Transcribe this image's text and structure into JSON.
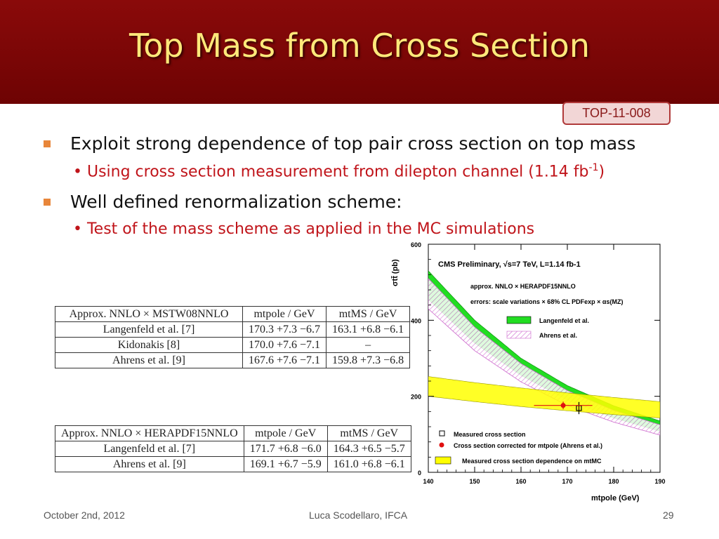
{
  "slide": {
    "title": "Top Mass from Cross Section",
    "badge": "TOP-11-008",
    "bullets": [
      {
        "text": "Exploit strong dependence of top pair cross section on top mass",
        "sub": "• Using cross section measurement from dilepton channel (1.14 fb",
        "sub_sup": "-1",
        "sub_end": ")"
      },
      {
        "text": "Well defined renormalization scheme:",
        "sub": "• Test of the mass scheme as applied in the MC simulations"
      }
    ]
  },
  "tables": [
    {
      "header": [
        "Approx. NNLO × MSTW08NNLO",
        "mtpole / GeV",
        "mtMS / GeV"
      ],
      "rows": [
        [
          "Langenfeld et al. [7]",
          "170.3 +7.3 −6.7",
          "163.1 +6.8 −6.1"
        ],
        [
          "Kidonakis [8]",
          "170.0 +7.6 −7.1",
          "–"
        ],
        [
          "Ahrens et al. [9]",
          "167.6 +7.6 −7.1",
          "159.8 +7.3 −6.8"
        ]
      ]
    },
    {
      "header": [
        "Approx. NNLO × HERAPDF15NNLO",
        "mtpole / GeV",
        "mtMS / GeV"
      ],
      "rows": [
        [
          "Langenfeld et al. [7]",
          "171.7 +6.8 −6.0",
          "164.3 +6.5 −5.7"
        ],
        [
          "Ahrens et al. [9]",
          "169.1 +6.7 −5.9",
          "161.0 +6.8 −6.1"
        ]
      ]
    }
  ],
  "chart_data": {
    "type": "line",
    "title": "CMS Preliminary, √s=7 TeV, L=1.14 fb-1",
    "info_lines": [
      "approx. NNLO × HERAPDF15NNLO",
      "errors: scale variations × 68% CL PDFexp × αs(MZ)"
    ],
    "xlabel": "mtpole (GeV)",
    "ylabel": "σtt̄ (pb)",
    "xlim": [
      140,
      190
    ],
    "ylim": [
      0,
      600
    ],
    "x_ticks": [
      140,
      150,
      160,
      170,
      180,
      190
    ],
    "y_ticks": [
      0,
      200,
      400,
      600
    ],
    "series": [
      {
        "name": "Langenfeld et al.",
        "style": "band",
        "color": "#22dd22",
        "x": [
          140,
          150,
          160,
          170,
          180,
          190
        ],
        "upper": [
          530,
          400,
          300,
          228,
          175,
          135
        ],
        "lower": [
          455,
          340,
          255,
          190,
          143,
          108
        ]
      },
      {
        "name": "Ahrens et al.",
        "style": "hatched-band",
        "color": "#cc66cc",
        "x": [
          140,
          150,
          160,
          170,
          180,
          190
        ],
        "upper": [
          510,
          382,
          286,
          215,
          163,
          125
        ],
        "lower": [
          430,
          320,
          238,
          176,
          132,
          98
        ]
      },
      {
        "name": "Measured cross section dependence on mtMC",
        "style": "band",
        "color": "#ffff00",
        "x": [
          140,
          150,
          160,
          170,
          180,
          190
        ],
        "upper": [
          252,
          236,
          222,
          209,
          197,
          186
        ],
        "lower": [
          200,
          186,
          173,
          162,
          152,
          143
        ]
      }
    ],
    "points": [
      {
        "name": "Measured cross section",
        "marker": "open-square",
        "x": 172.5,
        "y": 169,
        "xerr": 0,
        "yerr": 16
      },
      {
        "name": "Cross section corrected for mtpole (Ahrens et al.)",
        "marker": "red-dot",
        "x": 169.1,
        "y": 176,
        "xerr": 6.3,
        "yerr": 10
      }
    ],
    "legend_placement": "top-right and bottom-left inside plot"
  },
  "footer": {
    "date": "October 2nd, 2012",
    "author": "Luca Scodellaro, IFCA",
    "page": "29"
  }
}
